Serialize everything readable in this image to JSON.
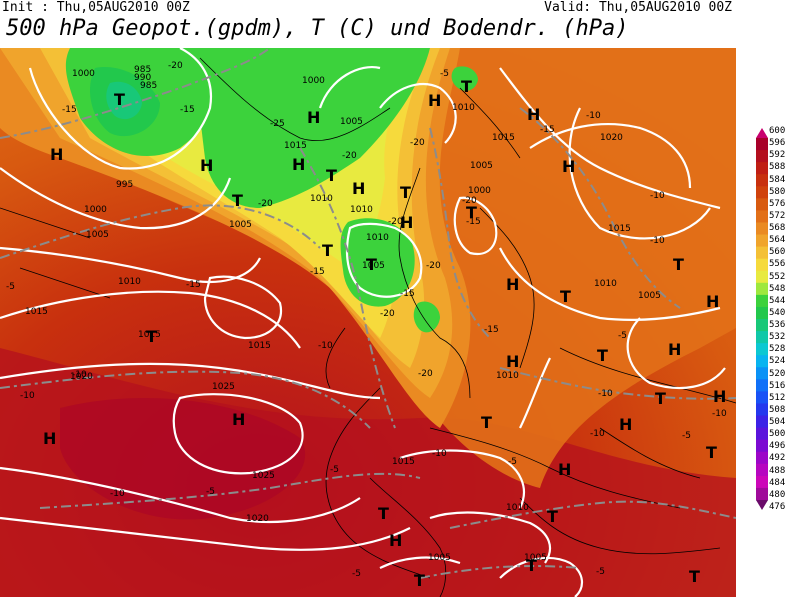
{
  "header": {
    "init": "Init : Thu,05AUG2010 00Z",
    "valid": "Valid: Thu,05AUG2010 00Z",
    "title": "500 hPa Geopot.(gpdm), T (C) und Bodendr. (hPa)"
  },
  "colorbar": {
    "labels": [
      "600",
      "596",
      "592",
      "588",
      "584",
      "580",
      "576",
      "572",
      "568",
      "564",
      "560",
      "556",
      "552",
      "548",
      "544",
      "540",
      "536",
      "532",
      "528",
      "524",
      "520",
      "516",
      "512",
      "508",
      "504",
      "500",
      "496",
      "492",
      "488",
      "484",
      "480",
      "476"
    ],
    "colors": [
      "#c8006e",
      "#a8002a",
      "#b4101e",
      "#c01e14",
      "#c8300e",
      "#d0420c",
      "#d85a10",
      "#e27018",
      "#ea8a22",
      "#f0a42c",
      "#f4c036",
      "#f6da3c",
      "#e8ea40",
      "#9ee83e",
      "#3cd23c",
      "#22c84c",
      "#18c878",
      "#10c8a8",
      "#0cc8d2",
      "#08b4f0",
      "#0a92f6",
      "#1070f8",
      "#1852f6",
      "#2438ee",
      "#3c22e6",
      "#5a14dc",
      "#7c0ad2",
      "#9c06c8",
      "#b606c0",
      "#cc06b8",
      "#a00a9a",
      "#6a0a6a"
    ]
  },
  "map": {
    "high_labels": [
      "H",
      "H",
      "H",
      "H",
      "H",
      "H",
      "H",
      "H",
      "H",
      "H",
      "H",
      "H",
      "H",
      "H",
      "H",
      "H",
      "H",
      "H",
      "H"
    ],
    "low_labels": [
      "T",
      "T",
      "T",
      "T",
      "T",
      "T",
      "T",
      "T",
      "T",
      "T",
      "T",
      "T",
      "T",
      "T",
      "T",
      "T",
      "T",
      "T",
      "T",
      "T"
    ],
    "pressure_labels": [
      "1000",
      "985",
      "990",
      "985",
      "995",
      "1000",
      "1005",
      "1005",
      "1000",
      "1010",
      "1005",
      "1015",
      "1015",
      "1015",
      "1020",
      "1025",
      "1025",
      "1020",
      "1015",
      "1010",
      "1010",
      "1010",
      "1005",
      "1000",
      "1005",
      "1010",
      "1015",
      "1020",
      "1015",
      "1010",
      "1005",
      "1005",
      "1005",
      "1015",
      "1010",
      "1010"
    ],
    "temp_labels": [
      "-20",
      "-15",
      "-15",
      "-25",
      "-20",
      "-20",
      "-15",
      "-20",
      "-20",
      "-15",
      "-5",
      "-15",
      "-10",
      "-15",
      "-10",
      "-10",
      "-10",
      "-5",
      "-10",
      "-5",
      "-5",
      "-15",
      "-10",
      "-10",
      "-10",
      "-10",
      "-5",
      "-5",
      "-5",
      "-5",
      "-10",
      "-10",
      "-5",
      "-15",
      "-20",
      "-20",
      "-20",
      "-20"
    ]
  }
}
